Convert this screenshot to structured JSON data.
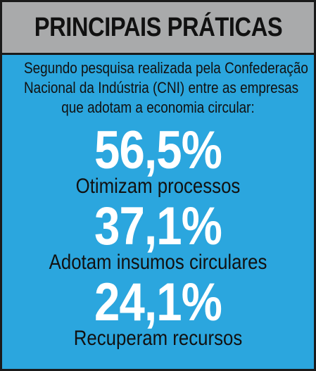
{
  "header": {
    "title": "PRINCIPAIS PRÁTICAS"
  },
  "intro": {
    "line1": "Segundo pesquisa realizada pela Confederação",
    "line2": "Nacional da Indústria (CNI) entre as empresas",
    "line3": "que adotam a economia circular:"
  },
  "stats": [
    {
      "value": "56,5%",
      "label": "Otimizam processos"
    },
    {
      "value": "37,1%",
      "label": "Adotam insumos circulares"
    },
    {
      "value": "24,1%",
      "label": "Recuperam recursos"
    }
  ],
  "colors": {
    "background": "#2ba6de",
    "header_background": "#a9aaab",
    "border": "#1a1a1a",
    "value_text": "#ffffff",
    "label_text": "#111111"
  }
}
